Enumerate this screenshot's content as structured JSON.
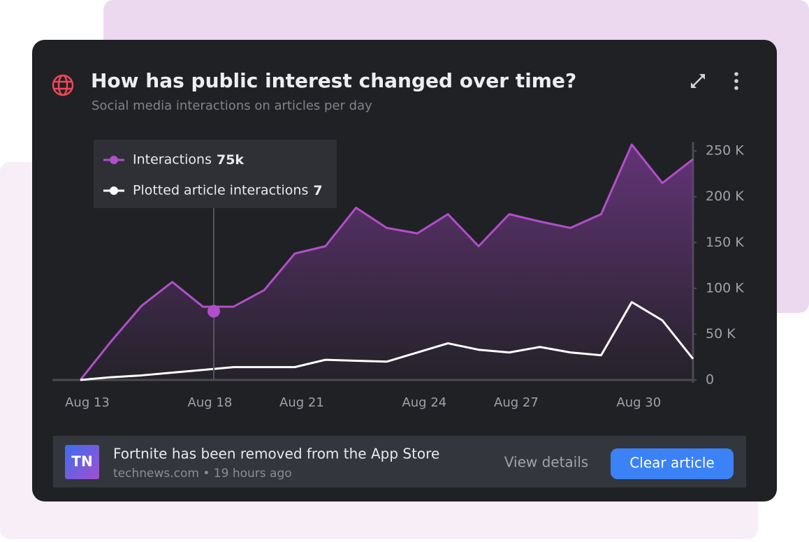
{
  "chart_data": {
    "type": "area",
    "title": "How has public interest changed over time?",
    "subtitle": "Social media interactions on articles per day",
    "categories": [
      "Aug 13",
      null,
      null,
      null,
      "Aug 18",
      null,
      null,
      "Aug 21",
      null,
      null,
      null,
      "Aug 24",
      null,
      null,
      "Aug 27",
      null,
      null,
      null,
      "Aug 30",
      null,
      null
    ],
    "series": [
      {
        "name": "Interactions",
        "color": "#b04fc9",
        "fill": true,
        "values": [
          0,
          42000,
          81000,
          107000,
          80000,
          80000,
          98000,
          138000,
          146000,
          188000,
          166000,
          160000,
          181000,
          146000,
          181000,
          173000,
          166000,
          181000,
          257000,
          215000,
          241000
        ]
      },
      {
        "name": "Plotted article interactions",
        "color": "#ffffff",
        "fill": false,
        "values": [
          0,
          3000,
          5000,
          8000,
          11000,
          14000,
          14000,
          14000,
          22000,
          21000,
          20000,
          30000,
          40000,
          33000,
          30000,
          36000,
          30000,
          27000,
          85000,
          65000,
          23000
        ]
      }
    ],
    "ylim": [
      0,
      260000
    ],
    "yticks": [
      0,
      {
        "value": 50000,
        "label": "50 K"
      },
      {
        "value": 100000,
        "label": "100 K"
      },
      {
        "value": 150000,
        "label": "150 K"
      },
      {
        "value": 200000,
        "label": "200 K"
      },
      {
        "value": 250000,
        "label": "250 K"
      }
    ],
    "tooltip": {
      "items": [
        {
          "value": 75000,
          "label": "75k"
        },
        {
          "value": 7
        }
      ]
    }
  },
  "article": {
    "badge": "TN",
    "headline": "Fortnite has been removed from the App Store",
    "source": "technews.com • 19 hours ago"
  },
  "actions": {
    "view": "View details",
    "clear": "Clear article"
  }
}
